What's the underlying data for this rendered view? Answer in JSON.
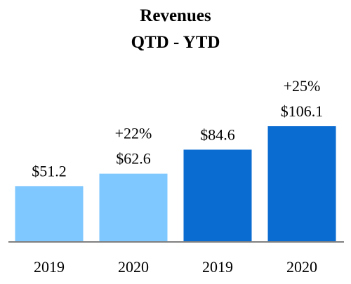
{
  "chart_data": {
    "type": "bar",
    "title": "Revenues",
    "subtitle": "QTD - YTD",
    "categories": [
      "2019",
      "2020",
      "2019",
      "2020"
    ],
    "values": [
      51.2,
      62.6,
      84.6,
      106.1
    ],
    "value_labels": [
      "$51.2",
      "$62.6",
      "$84.6",
      "$106.1"
    ],
    "change_labels": [
      "",
      "+22%",
      "",
      "+25%"
    ],
    "groups": [
      "QTD",
      "QTD",
      "YTD",
      "YTD"
    ],
    "bar_colors": [
      "#7fc7ff",
      "#7fc7ff",
      "#0a6bd1",
      "#0a6bd1"
    ],
    "axis_line_color": "#808080",
    "ylim": [
      0,
      120
    ],
    "xlabel": "",
    "ylabel": "",
    "grid": false
  }
}
